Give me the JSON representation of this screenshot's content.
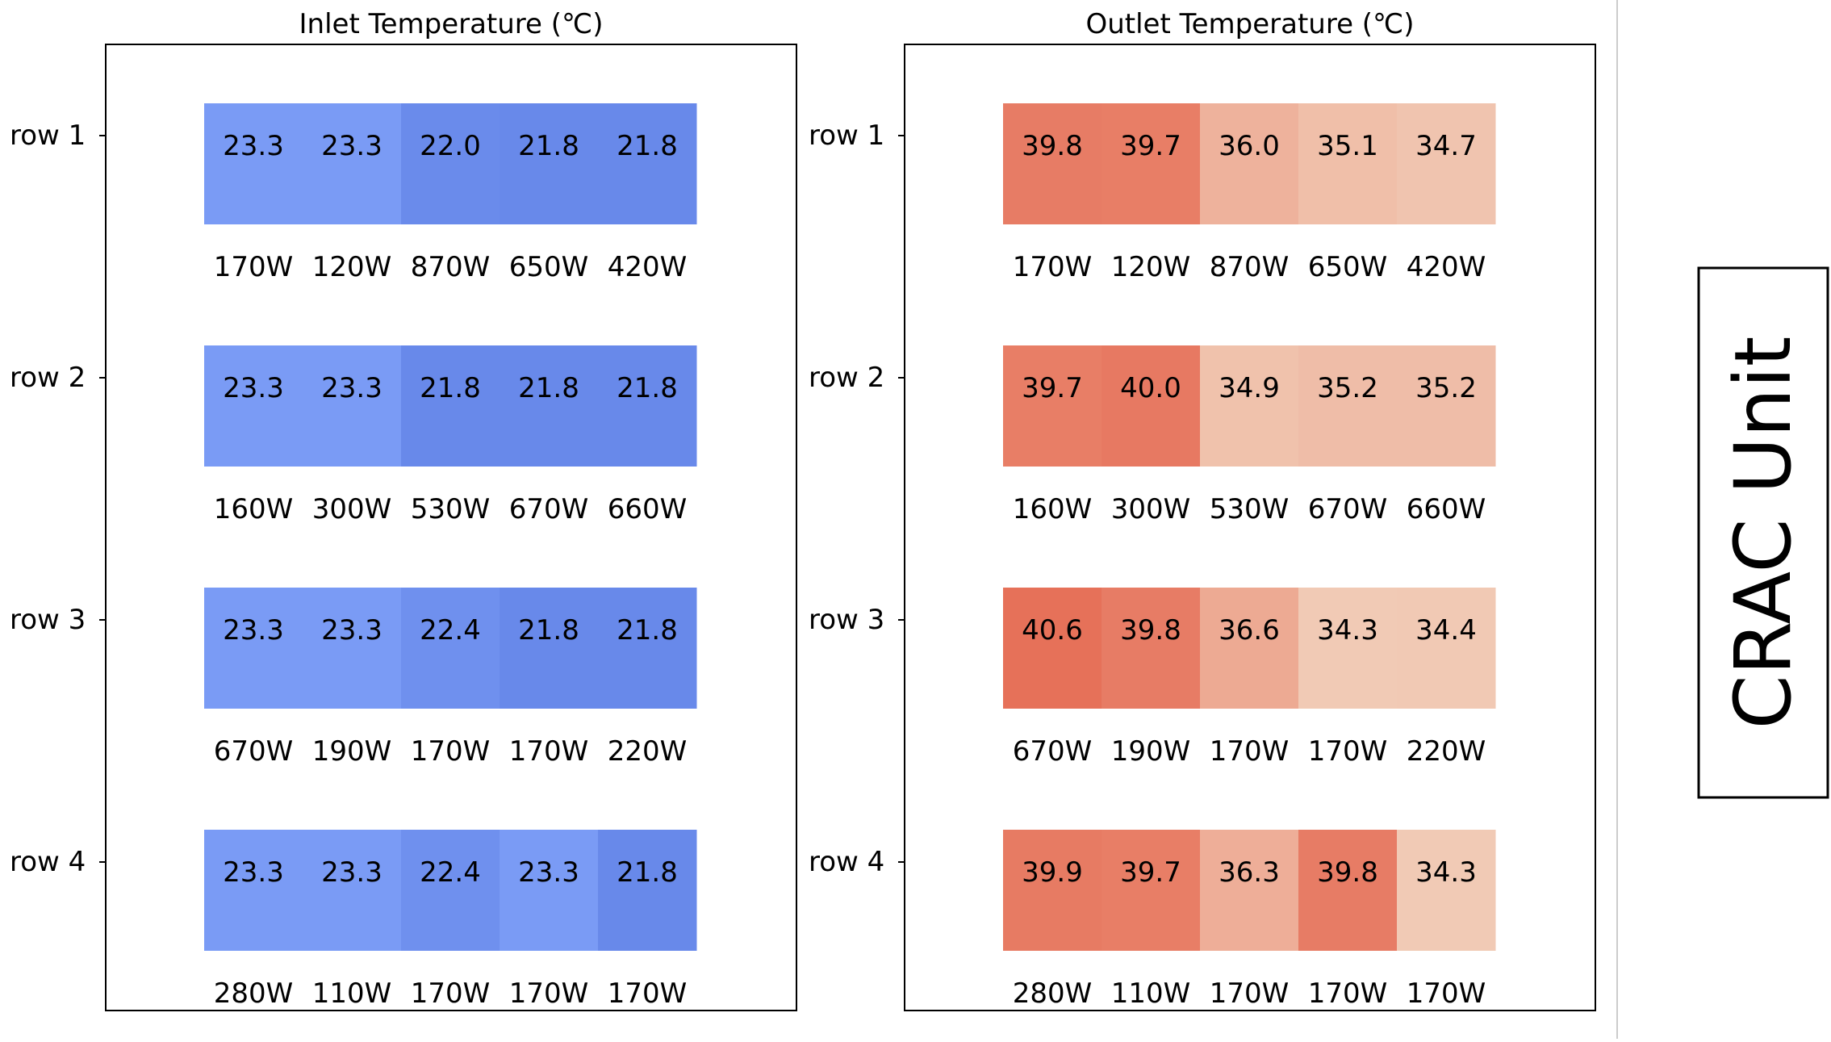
{
  "chart_data": [
    {
      "type": "heatmap",
      "title": "Inlet Temperature (℃)",
      "rows": [
        "row 1",
        "row 2",
        "row 3",
        "row 4"
      ],
      "values": [
        [
          23.3,
          23.3,
          22.0,
          21.8,
          21.8
        ],
        [
          23.3,
          23.3,
          21.8,
          21.8,
          21.8
        ],
        [
          23.3,
          23.3,
          22.4,
          21.8,
          21.8
        ],
        [
          23.3,
          23.3,
          22.4,
          23.3,
          21.8
        ]
      ],
      "power_labels": [
        [
          "170W",
          "120W",
          "870W",
          "650W",
          "420W"
        ],
        [
          "160W",
          "300W",
          "530W",
          "670W",
          "660W"
        ],
        [
          "670W",
          "190W",
          "170W",
          "170W",
          "220W"
        ],
        [
          "280W",
          "110W",
          "170W",
          "170W",
          "170W"
        ]
      ],
      "colormap": "cool-blue"
    },
    {
      "type": "heatmap",
      "title": "Outlet Temperature (℃)",
      "rows": [
        "row 1",
        "row 2",
        "row 3",
        "row 4"
      ],
      "values": [
        [
          39.8,
          39.7,
          36.0,
          35.1,
          34.7
        ],
        [
          39.7,
          40.0,
          34.9,
          35.2,
          35.2
        ],
        [
          40.6,
          39.8,
          36.6,
          34.3,
          34.4
        ],
        [
          39.9,
          39.7,
          36.3,
          39.8,
          34.3
        ]
      ],
      "power_labels": [
        [
          "170W",
          "120W",
          "870W",
          "650W",
          "420W"
        ],
        [
          "160W",
          "300W",
          "530W",
          "670W",
          "660W"
        ],
        [
          "670W",
          "190W",
          "170W",
          "170W",
          "220W"
        ],
        [
          "280W",
          "110W",
          "170W",
          "170W",
          "170W"
        ]
      ],
      "colormap": "warm-red"
    }
  ],
  "crac_label": "CRAC Unit",
  "colors": {
    "inlet_low": "#6889ea",
    "inlet_high": "#7a9bf5",
    "outlet_low": "#f1cab5",
    "outlet_high": "#e67159",
    "frame": "#000000",
    "divider": "#cccccc"
  }
}
